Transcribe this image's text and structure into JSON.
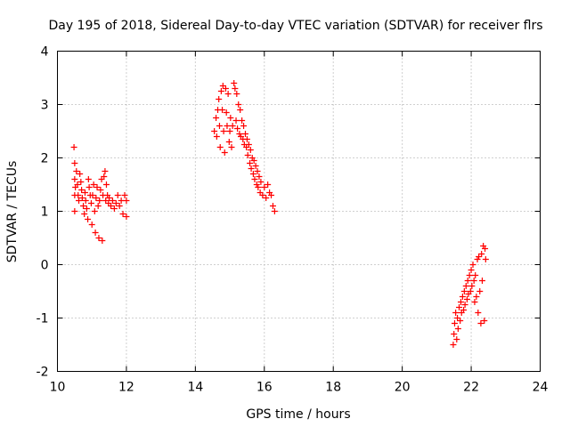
{
  "chart_data": {
    "type": "scatter",
    "title": "Day 195 of 2018, Sidereal Day-to-day VTEC variation (SDTVAR) for receiver flrs",
    "xlabel": "GPS time / hours",
    "ylabel": "SDTVAR / TECUs",
    "xlim": [
      10,
      24
    ],
    "ylim": [
      -2,
      4
    ],
    "xticks": [
      "10",
      "12",
      "14",
      "16",
      "18",
      "20",
      "22",
      "24"
    ],
    "yticks": [
      "-2",
      "-1",
      "0",
      "1",
      "2",
      "3",
      "4"
    ],
    "grid": true,
    "marker": "plus",
    "series": [
      {
        "name": "pass 1",
        "color": "#ff0000",
        "points": [
          [
            10.48,
            2.2
          ],
          [
            10.5,
            1.9
          ],
          [
            10.5,
            1.6
          ],
          [
            10.5,
            1.3
          ],
          [
            10.5,
            1.0
          ],
          [
            10.52,
            1.45
          ],
          [
            10.55,
            1.75
          ],
          [
            10.58,
            1.5
          ],
          [
            10.6,
            1.3
          ],
          [
            10.62,
            1.2
          ],
          [
            10.65,
            1.7
          ],
          [
            10.68,
            1.55
          ],
          [
            10.7,
            1.4
          ],
          [
            10.72,
            1.25
          ],
          [
            10.75,
            1.1
          ],
          [
            10.78,
            0.95
          ],
          [
            10.8,
            1.35
          ],
          [
            10.82,
            1.2
          ],
          [
            10.85,
            1.05
          ],
          [
            10.88,
            0.85
          ],
          [
            10.9,
            1.6
          ],
          [
            10.92,
            1.45
          ],
          [
            10.95,
            1.3
          ],
          [
            10.98,
            1.15
          ],
          [
            11.0,
            0.75
          ],
          [
            11.02,
            1.3
          ],
          [
            11.05,
            1.5
          ],
          [
            11.08,
            1.0
          ],
          [
            11.1,
            0.6
          ],
          [
            11.12,
            1.25
          ],
          [
            11.15,
            1.45
          ],
          [
            11.18,
            1.1
          ],
          [
            11.2,
            0.5
          ],
          [
            11.22,
            1.2
          ],
          [
            11.25,
            1.4
          ],
          [
            11.28,
            1.6
          ],
          [
            11.3,
            0.45
          ],
          [
            11.32,
            1.3
          ],
          [
            11.35,
            1.65
          ],
          [
            11.38,
            1.75
          ],
          [
            11.4,
            1.2
          ],
          [
            11.42,
            1.5
          ],
          [
            11.45,
            1.3
          ],
          [
            11.48,
            1.15
          ],
          [
            11.5,
            1.25
          ],
          [
            11.55,
            1.1
          ],
          [
            11.6,
            1.2
          ],
          [
            11.65,
            1.05
          ],
          [
            11.7,
            1.15
          ],
          [
            11.75,
            1.3
          ],
          [
            11.8,
            1.1
          ],
          [
            11.85,
            1.2
          ],
          [
            11.9,
            0.95
          ],
          [
            11.95,
            1.3
          ],
          [
            12.0,
            1.2
          ],
          [
            12.0,
            0.9
          ]
        ]
      },
      {
        "name": "pass 2",
        "color": "#ff0000",
        "points": [
          [
            14.55,
            2.5
          ],
          [
            14.6,
            2.75
          ],
          [
            14.62,
            2.4
          ],
          [
            14.65,
            2.9
          ],
          [
            14.68,
            3.1
          ],
          [
            14.7,
            2.6
          ],
          [
            14.72,
            2.2
          ],
          [
            14.75,
            3.25
          ],
          [
            14.78,
            2.9
          ],
          [
            14.8,
            3.35
          ],
          [
            14.82,
            2.5
          ],
          [
            14.85,
            2.1
          ],
          [
            14.88,
            3.3
          ],
          [
            14.9,
            2.85
          ],
          [
            14.92,
            2.6
          ],
          [
            14.95,
            3.2
          ],
          [
            14.98,
            2.3
          ],
          [
            15.0,
            2.5
          ],
          [
            15.02,
            2.75
          ],
          [
            15.05,
            2.2
          ],
          [
            15.08,
            2.6
          ],
          [
            15.12,
            3.4
          ],
          [
            15.15,
            3.3
          ],
          [
            15.18,
            2.7
          ],
          [
            15.2,
            3.2
          ],
          [
            15.22,
            2.55
          ],
          [
            15.25,
            3.0
          ],
          [
            15.28,
            2.45
          ],
          [
            15.3,
            2.9
          ],
          [
            15.32,
            2.4
          ],
          [
            15.35,
            2.7
          ],
          [
            15.38,
            2.35
          ],
          [
            15.4,
            2.6
          ],
          [
            15.42,
            2.25
          ],
          [
            15.45,
            2.45
          ],
          [
            15.48,
            2.2
          ],
          [
            15.5,
            2.35
          ],
          [
            15.52,
            2.05
          ],
          [
            15.55,
            2.25
          ],
          [
            15.58,
            1.9
          ],
          [
            15.6,
            2.15
          ],
          [
            15.62,
            1.8
          ],
          [
            15.65,
            2.0
          ],
          [
            15.68,
            1.7
          ],
          [
            15.7,
            1.95
          ],
          [
            15.72,
            1.6
          ],
          [
            15.75,
            1.85
          ],
          [
            15.78,
            1.5
          ],
          [
            15.8,
            1.75
          ],
          [
            15.82,
            1.45
          ],
          [
            15.85,
            1.65
          ],
          [
            15.88,
            1.35
          ],
          [
            15.9,
            1.55
          ],
          [
            15.95,
            1.3
          ],
          [
            16.0,
            1.45
          ],
          [
            16.05,
            1.25
          ],
          [
            16.1,
            1.5
          ],
          [
            16.15,
            1.35
          ],
          [
            16.2,
            1.3
          ],
          [
            16.25,
            1.1
          ],
          [
            16.3,
            1.0
          ]
        ]
      },
      {
        "name": "pass 3",
        "color": "#ff0000",
        "points": [
          [
            21.48,
            -1.5
          ],
          [
            21.5,
            -1.3
          ],
          [
            21.52,
            -1.1
          ],
          [
            21.55,
            -0.9
          ],
          [
            21.58,
            -1.4
          ],
          [
            21.6,
            -1.0
          ],
          [
            21.62,
            -1.2
          ],
          [
            21.65,
            -0.8
          ],
          [
            21.68,
            -1.05
          ],
          [
            21.7,
            -0.7
          ],
          [
            21.72,
            -0.9
          ],
          [
            21.75,
            -0.6
          ],
          [
            21.78,
            -0.85
          ],
          [
            21.8,
            -0.5
          ],
          [
            21.82,
            -0.75
          ],
          [
            21.85,
            -0.4
          ],
          [
            21.88,
            -0.65
          ],
          [
            21.9,
            -0.3
          ],
          [
            21.92,
            -0.55
          ],
          [
            21.95,
            -0.2
          ],
          [
            21.98,
            -0.5
          ],
          [
            22.0,
            -0.1
          ],
          [
            22.02,
            -0.4
          ],
          [
            22.05,
            0.0
          ],
          [
            22.08,
            -0.3
          ],
          [
            22.1,
            -0.7
          ],
          [
            22.12,
            -0.2
          ],
          [
            22.15,
            -0.6
          ],
          [
            22.18,
            0.1
          ],
          [
            22.2,
            -0.9
          ],
          [
            22.22,
            0.15
          ],
          [
            22.25,
            -0.5
          ],
          [
            22.28,
            -1.1
          ],
          [
            22.3,
            0.2
          ],
          [
            22.32,
            -0.3
          ],
          [
            22.35,
            0.35
          ],
          [
            22.38,
            -1.05
          ],
          [
            22.4,
            0.3
          ],
          [
            22.42,
            0.1
          ]
        ]
      }
    ]
  }
}
